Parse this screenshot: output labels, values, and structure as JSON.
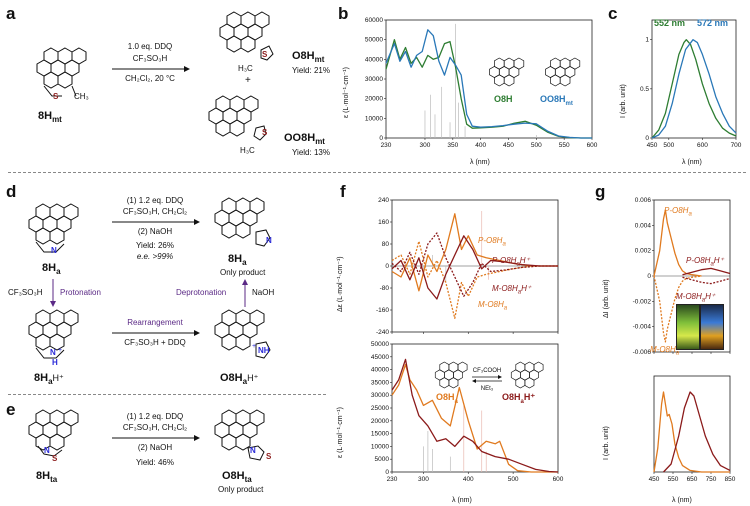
{
  "panels": {
    "a": "a",
    "b": "b",
    "c": "c",
    "d": "d",
    "e": "e",
    "f": "f",
    "g": "g"
  },
  "colors": {
    "green": "#2e7d32",
    "blue": "#2a78b8",
    "orange": "#e07a1f",
    "darkred": "#8b1a1a",
    "purple": "#5b2a86",
    "gray": "#999999"
  },
  "a": {
    "start_label": "8H",
    "start_sub": "mt",
    "cond1": "1.0 eq. DDQ",
    "cond2": "CF₃SO₃H",
    "cond3": "CH₂Cl₂, 20 °C",
    "s_atom": "S",
    "ch3": "CH₃",
    "p1_label": "O8H",
    "p1_sub": "mt",
    "p1_yield": "Yield: 21%",
    "plus": "+",
    "p2_label": "OO8H",
    "p2_sub": "mt",
    "p2_yield": "Yield: 13%",
    "p2_s": "S",
    "p1_s": "S",
    "p1_ch3": "H₃C",
    "p2_ch3": "H₃C"
  },
  "d": {
    "start_label": "8H",
    "start_sub": "a",
    "n_atom": "N",
    "cond1": "(1) 1.2 eq. DDQ",
    "cond2": "CF₃SO₃H, CH₂Cl₂",
    "cond3": "(2) NaOH",
    "yield": "Yield: 26%",
    "ee": "e.e. >99%",
    "product_label": "8H",
    "product_sub": "a",
    "only_product": "Only product",
    "protonation": "CF₃SO₃H",
    "protonation2": "Protonation",
    "deprotonation": "Deprotonation",
    "naoh": "NaOH",
    "rearr1": "Rearrangement",
    "rearr2": "CF₃SO₃H + DDQ",
    "protonated_label": "8H",
    "protonated_sub": "a",
    "protonated_sup": "H⁺",
    "nh": "N",
    "h": "H",
    "plus_charge": "+",
    "o8_label": "O8H",
    "o8_sub": "a",
    "o8_sup": "H⁺",
    "nh_prod": "NH",
    "plus2": "+"
  },
  "e": {
    "start_label": "8H",
    "start_sub": "ta",
    "n_atom": "N",
    "s_atom": "S",
    "cond1": "(1) 1.2 eq. DDQ",
    "cond2": "CF₃SO₃H, CH₂Cl₂",
    "cond3": "(2) NaOH",
    "yield": "Yield: 46%",
    "product_label": "O8H",
    "product_sub": "ta",
    "only_product": "Only product",
    "pn": "N",
    "ps": "S"
  },
  "b_chart": {
    "type": "line",
    "ylabel": "ε (L·mol⁻¹·cm⁻¹)",
    "xlabel": "λ (nm)",
    "xlim": [
      230,
      600
    ],
    "ylim": [
      0,
      60000
    ],
    "xticks": [
      230,
      300,
      350,
      400,
      450,
      500,
      550,
      600
    ],
    "yticks": [
      0,
      10000,
      20000,
      30000,
      40000,
      50000,
      60000
    ],
    "legend": [
      "O8H",
      "OO8Hmt"
    ],
    "legend_sub": "mt",
    "legend1": "O8H",
    "legend2": "OO8H"
  },
  "c_chart": {
    "type": "line",
    "ylabel": "I (arb. unit)",
    "xlabel": "λ (nm)",
    "xlim": [
      450,
      700
    ],
    "ylim": [
      0,
      1.2
    ],
    "xticks": [
      450,
      500,
      600,
      700
    ],
    "yticks": [
      0,
      0.5,
      1
    ],
    "peak_green": "552 nm",
    "peak_blue": "572 nm"
  },
  "f_chart": {
    "top_ylabel": "Δε (L·mol⁻¹·cm⁻¹)",
    "top_yticks": [
      240,
      160,
      80,
      0,
      -80,
      -160,
      -240
    ],
    "bottom_ylabel": "ε (L·mol⁻¹·cm⁻¹)",
    "bottom_yticks": [
      0,
      5000,
      10000,
      15000,
      20000,
      25000,
      30000,
      35000,
      40000,
      45000,
      50000
    ],
    "xticks": [
      230,
      300,
      400,
      500,
      600
    ],
    "xlabel": "λ (nm)",
    "xlim": [
      230,
      600
    ],
    "lab_P": "P-O8H",
    "lab_P_sub": "a",
    "lab_PH": "P-O8H",
    "lab_PH_sub": "a",
    "lab_PH_sup": "H⁺",
    "lab_MH": "M-O8H",
    "lab_MH_sub": "a",
    "lab_MH_sup": "H⁺",
    "lab_M": "M-O8H",
    "lab_M_sub": "a",
    "leg_left": "O8H",
    "leg_left_sub": "a",
    "leg_right": "O8H",
    "leg_right_sub": "a",
    "leg_right_sup": "H⁺",
    "arrow_top": "CF₃COOH",
    "arrow_bottom": "NEt₃"
  },
  "g_chart": {
    "top_ylabel": "ΔI (arb. unit)",
    "top_yticks": [
      0.006,
      0.004,
      0.002,
      0,
      -0.002,
      -0.004,
      -0.006
    ],
    "bottom_ylabel": "I (arb. unit)",
    "xticks": [
      450,
      550,
      650,
      750,
      850
    ],
    "xlabel": "λ (nm)",
    "lab_P": "P-O8H",
    "lab_P_sub": "a",
    "lab_PH": "P-O8H",
    "lab_PH_sub": "a",
    "lab_PH_sup": "H⁺",
    "lab_MH": "M-O8H",
    "lab_MH_sub": "a",
    "lab_MH_sup": "H⁺",
    "lab_M": "M-O8H",
    "lab_M_sub": "a"
  },
  "chart_data": [
    {
      "type": "line",
      "title": "b",
      "xlabel": "λ (nm)",
      "ylabel": "ε (L·mol⁻¹·cm⁻¹)",
      "xlim": [
        230,
        600
      ],
      "ylim": [
        0,
        60000
      ],
      "series": [
        {
          "name": "O8H",
          "color": "#2e7d32",
          "x": [
            230,
            245,
            255,
            265,
            275,
            285,
            295,
            305,
            315,
            325,
            335,
            345,
            355,
            365,
            375,
            385,
            400,
            420,
            440,
            460,
            480,
            500,
            520,
            540,
            560,
            580,
            600
          ],
          "y": [
            35000,
            50000,
            40000,
            46000,
            38000,
            41000,
            36000,
            42000,
            40000,
            41000,
            48000,
            49000,
            36000,
            20000,
            7000,
            5000,
            5200,
            5500,
            6000,
            7500,
            8500,
            6500,
            3000,
            800,
            200,
            0,
            0
          ]
        },
        {
          "name": "OO8Hmt",
          "color": "#2a78b8",
          "x": [
            230,
            245,
            255,
            265,
            275,
            285,
            295,
            305,
            315,
            325,
            335,
            345,
            355,
            365,
            375,
            385,
            400,
            420,
            440,
            460,
            480,
            500,
            520,
            540,
            560,
            580,
            600
          ],
          "y": [
            38000,
            48000,
            39000,
            44000,
            36000,
            42000,
            44000,
            55000,
            52000,
            39000,
            32000,
            41000,
            37000,
            32000,
            12000,
            6000,
            5500,
            5800,
            6300,
            7000,
            7600,
            7200,
            3500,
            1000,
            300,
            0,
            0
          ]
        }
      ]
    },
    {
      "type": "line",
      "title": "c",
      "xlabel": "λ (nm)",
      "ylabel": "I (arb. unit)",
      "xlim": [
        450,
        700
      ],
      "ylim": [
        0,
        1.2
      ],
      "series": [
        {
          "name": "O8H",
          "color": "#2e7d32",
          "x": [
            450,
            470,
            490,
            510,
            530,
            545,
            552,
            565,
            580,
            600,
            620,
            640,
            660,
            680,
            700
          ],
          "y": [
            0.0,
            0.08,
            0.25,
            0.55,
            0.85,
            0.97,
            1.0,
            0.95,
            0.8,
            0.55,
            0.35,
            0.2,
            0.1,
            0.05,
            0.02
          ]
        },
        {
          "name": "OO8Hmt",
          "color": "#2a78b8",
          "x": [
            450,
            470,
            490,
            510,
            530,
            550,
            572,
            585,
            600,
            620,
            640,
            660,
            680,
            700
          ],
          "y": [
            0.0,
            0.03,
            0.12,
            0.35,
            0.65,
            0.9,
            1.0,
            0.97,
            0.85,
            0.65,
            0.42,
            0.25,
            0.12,
            0.05
          ]
        }
      ],
      "annotations": [
        "552 nm",
        "572 nm"
      ]
    },
    {
      "type": "line",
      "title": "f-top",
      "xlabel": "λ (nm)",
      "ylabel": "Δε (L·mol⁻¹·cm⁻¹)",
      "xlim": [
        230,
        600
      ],
      "ylim": [
        -240,
        240
      ],
      "series": [
        {
          "name": "P-O8Ha",
          "color": "#e07a1f",
          "style": "solid",
          "x": [
            230,
            250,
            270,
            290,
            310,
            330,
            350,
            370,
            385,
            400,
            420,
            440,
            470,
            500,
            540,
            600
          ],
          "y": [
            -20,
            -40,
            30,
            -90,
            40,
            -20,
            60,
            190,
            60,
            110,
            40,
            30,
            20,
            10,
            0,
            0
          ]
        },
        {
          "name": "M-O8Ha",
          "color": "#e07a1f",
          "style": "dashed",
          "x": [
            230,
            250,
            270,
            290,
            310,
            330,
            350,
            370,
            385,
            400,
            420,
            440,
            470,
            500,
            540,
            600
          ],
          "y": [
            20,
            40,
            -30,
            90,
            -40,
            20,
            -60,
            -190,
            -60,
            -110,
            -40,
            -30,
            -20,
            -10,
            0,
            0
          ]
        },
        {
          "name": "P-O8HaH+",
          "color": "#8b1a1a",
          "style": "solid",
          "x": [
            230,
            250,
            270,
            290,
            310,
            330,
            350,
            370,
            390,
            410,
            430,
            450,
            480,
            520,
            560,
            600
          ],
          "y": [
            -10,
            20,
            -50,
            30,
            -80,
            -120,
            -30,
            40,
            110,
            60,
            -10,
            20,
            15,
            5,
            0,
            0
          ]
        },
        {
          "name": "M-O8HaH+",
          "color": "#8b1a1a",
          "style": "dashed",
          "x": [
            230,
            250,
            270,
            290,
            310,
            330,
            350,
            370,
            390,
            410,
            430,
            450,
            480,
            520,
            560,
            600
          ],
          "y": [
            10,
            -20,
            50,
            -30,
            80,
            120,
            30,
            -40,
            -110,
            -60,
            10,
            -20,
            -15,
            -5,
            0,
            0
          ]
        }
      ]
    },
    {
      "type": "line",
      "title": "f-bottom",
      "xlabel": "λ (nm)",
      "ylabel": "ε (L·mol⁻¹·cm⁻¹)",
      "xlim": [
        230,
        600
      ],
      "ylim": [
        0,
        50000
      ],
      "series": [
        {
          "name": "O8Ha",
          "color": "#e07a1f",
          "x": [
            230,
            245,
            260,
            270,
            285,
            300,
            320,
            340,
            360,
            380,
            400,
            420,
            440,
            460,
            470,
            490,
            510,
            540,
            600
          ],
          "y": [
            30000,
            34000,
            42000,
            36000,
            32000,
            26000,
            28000,
            21000,
            18000,
            33000,
            20000,
            9000,
            12000,
            11000,
            12000,
            3000,
            500,
            0,
            0
          ]
        },
        {
          "name": "O8HaH+",
          "color": "#8b1a1a",
          "x": [
            230,
            245,
            260,
            275,
            290,
            310,
            330,
            350,
            370,
            390,
            410,
            430,
            460,
            490,
            520,
            550,
            580,
            600
          ],
          "y": [
            32000,
            36000,
            44000,
            30000,
            22000,
            18000,
            12000,
            13000,
            10000,
            14000,
            12000,
            8000,
            6000,
            5000,
            3000,
            1000,
            200,
            0
          ]
        }
      ]
    },
    {
      "type": "line",
      "title": "g-top",
      "xlabel": "λ (nm)",
      "ylabel": "ΔI (arb. unit)",
      "xlim": [
        450,
        850
      ],
      "ylim": [
        -0.006,
        0.006
      ],
      "series": [
        {
          "name": "P-O8Ha",
          "color": "#e07a1f",
          "style": "solid",
          "x": [
            450,
            480,
            500,
            510,
            520,
            540,
            560,
            580,
            600,
            620,
            650,
            700
          ],
          "y": [
            0,
            0.002,
            0.0045,
            0.0052,
            0.0042,
            0.003,
            0.0018,
            0.0009,
            0.0004,
            0.0002,
            0.0001,
            0
          ]
        },
        {
          "name": "M-O8Ha",
          "color": "#e07a1f",
          "style": "dashed",
          "x": [
            450,
            480,
            500,
            510,
            520,
            540,
            560,
            580,
            600,
            620,
            650,
            700
          ],
          "y": [
            0,
            -0.002,
            -0.0045,
            -0.0052,
            -0.0042,
            -0.003,
            -0.0018,
            -0.0009,
            -0.0004,
            -0.0002,
            -0.0001,
            0
          ]
        },
        {
          "name": "P-O8HaH+",
          "color": "#8b1a1a",
          "style": "solid",
          "x": [
            600,
            650,
            700,
            750,
            800,
            850
          ],
          "y": [
            0.0001,
            0.0003,
            0.0005,
            0.0006,
            0.0004,
            0.0002
          ]
        },
        {
          "name": "M-O8HaH+",
          "color": "#8b1a1a",
          "style": "dashed",
          "x": [
            600,
            650,
            700,
            750,
            800,
            850
          ],
          "y": [
            -0.0001,
            -0.0003,
            -0.0005,
            -0.0006,
            -0.0004,
            -0.0002
          ]
        }
      ]
    },
    {
      "type": "line",
      "title": "g-bottom",
      "xlabel": "λ (nm)",
      "ylabel": "I (arb. unit)",
      "xlim": [
        450,
        850
      ],
      "ylim": [
        0,
        1.2
      ],
      "series": [
        {
          "name": "O8Ha",
          "color": "#e07a1f",
          "x": [
            450,
            470,
            490,
            500,
            510,
            520,
            530,
            545,
            560,
            580,
            600,
            640,
            700,
            850
          ],
          "y": [
            0,
            0.3,
            0.85,
            1.0,
            0.85,
            0.7,
            0.72,
            0.6,
            0.35,
            0.18,
            0.08,
            0.02,
            0,
            0
          ]
        },
        {
          "name": "O8HaH+",
          "color": "#8b1a1a",
          "x": [
            500,
            540,
            580,
            610,
            640,
            660,
            690,
            720,
            760,
            800,
            850
          ],
          "y": [
            0,
            0.1,
            0.45,
            0.8,
            1.0,
            0.95,
            0.7,
            0.45,
            0.22,
            0.08,
            0.02
          ]
        }
      ]
    }
  ]
}
